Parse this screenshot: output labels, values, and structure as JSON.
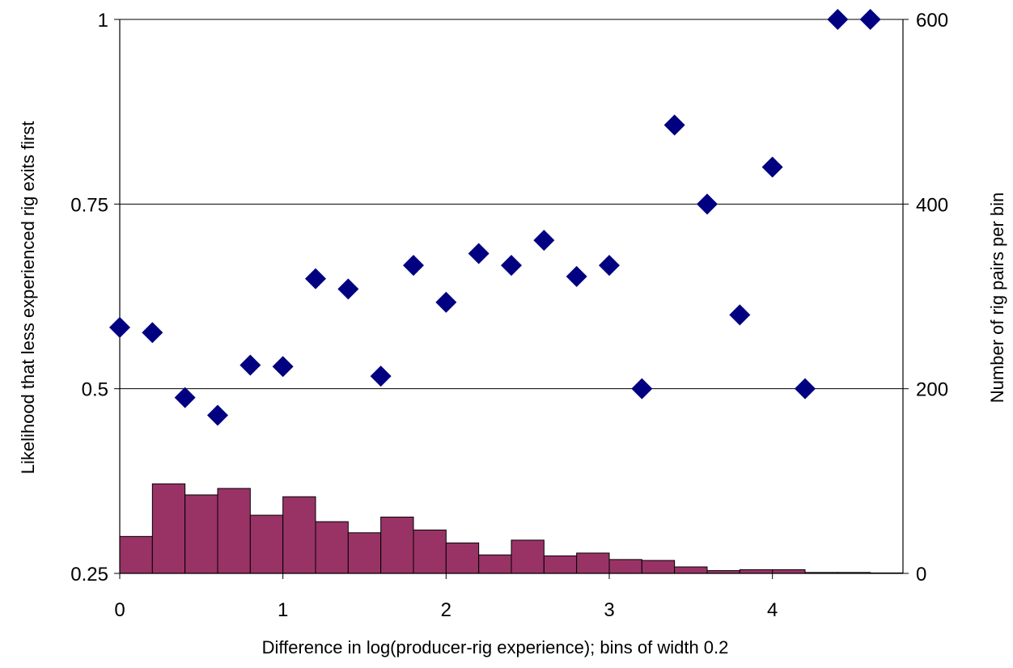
{
  "chart_data": {
    "type": "bar+scatter",
    "xlabel": "Difference in log(producer-rig experience); bins of width 0.2",
    "ylabel_left": "Likelihood that less experienced rig exits first",
    "ylabel_right": "Number of rig pairs per bin",
    "xlim": [
      0,
      4.8
    ],
    "ylim_left": [
      0.25,
      1
    ],
    "ylim_right": [
      0,
      600
    ],
    "x_ticks": [
      "0",
      "1",
      "2",
      "3",
      "4"
    ],
    "left_ticks": [
      "0.25",
      "0.5",
      "0.75",
      "1"
    ],
    "right_ticks": [
      "0",
      "200",
      "400",
      "600"
    ],
    "gridlines": "horizontal",
    "colors": {
      "bars": "#993366",
      "points": "#000080",
      "grid": "#000000"
    },
    "histogram": {
      "name": "Number of rig pairs per bin",
      "bin_width": 0.2,
      "bin_starts": [
        0,
        0.2,
        0.4,
        0.6,
        0.8,
        1.0,
        1.2,
        1.4,
        1.6,
        1.8,
        2.0,
        2.2,
        2.4,
        2.6,
        2.8,
        3.0,
        3.2,
        3.4,
        3.6,
        3.8,
        4.0,
        4.2,
        4.4,
        4.6
      ],
      "values": [
        40,
        97,
        85,
        92,
        63,
        83,
        56,
        44,
        61,
        47,
        33,
        20,
        36,
        19,
        22,
        15,
        14,
        7,
        3,
        4,
        4,
        1,
        1,
        0.5
      ]
    },
    "scatter": {
      "name": "Likelihood that less experienced rig exits first",
      "x": [
        0,
        0.2,
        0.4,
        0.6,
        0.8,
        1.0,
        1.2,
        1.4,
        1.6,
        1.8,
        2.0,
        2.2,
        2.4,
        2.6,
        2.8,
        3.0,
        3.2,
        3.4,
        3.6,
        3.8,
        4.0,
        4.2,
        4.4,
        4.6
      ],
      "y": [
        0.583,
        0.576,
        0.488,
        0.464,
        0.532,
        0.53,
        0.649,
        0.635,
        0.517,
        0.667,
        0.617,
        0.683,
        0.667,
        0.701,
        0.652,
        0.667,
        0.5,
        0.857,
        0.75,
        0.6,
        0.8,
        0.5,
        1.0,
        1.0
      ]
    }
  }
}
